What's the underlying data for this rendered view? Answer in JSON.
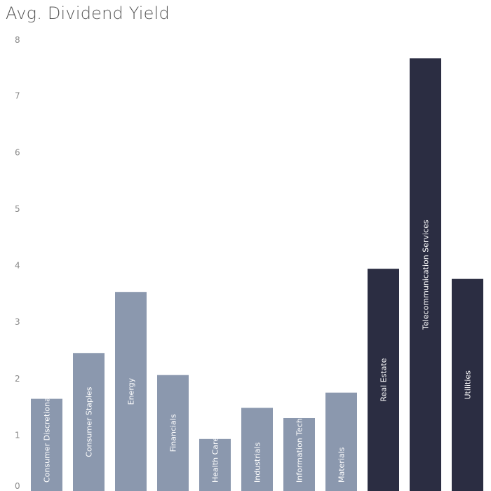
{
  "chart_data": {
    "type": "bar",
    "title": "Avg. Dividend Yield",
    "xlabel": "",
    "ylabel": "",
    "ylim": [
      0,
      8
    ],
    "yticks": [
      0,
      1,
      2,
      3,
      4,
      5,
      6,
      7,
      8
    ],
    "grid": false,
    "legend": "none",
    "categories": [
      "Consumer Discretionary",
      "Consumer Staples",
      "Energy",
      "Financials",
      "Health Care",
      "Industrials",
      "Information Technolo",
      "Materials",
      "Real Estate",
      "Telecommunication Services",
      "Utilities"
    ],
    "values": [
      1.63,
      2.44,
      3.52,
      2.05,
      0.92,
      1.47,
      1.29,
      1.74,
      3.93,
      7.65,
      3.75
    ],
    "colors": {
      "light_bar": "#8b98ae",
      "dark_bar": "#2b2d42",
      "highlighted_categories": [
        "Real Estate",
        "Telecommunication Services",
        "Utilities"
      ]
    }
  }
}
